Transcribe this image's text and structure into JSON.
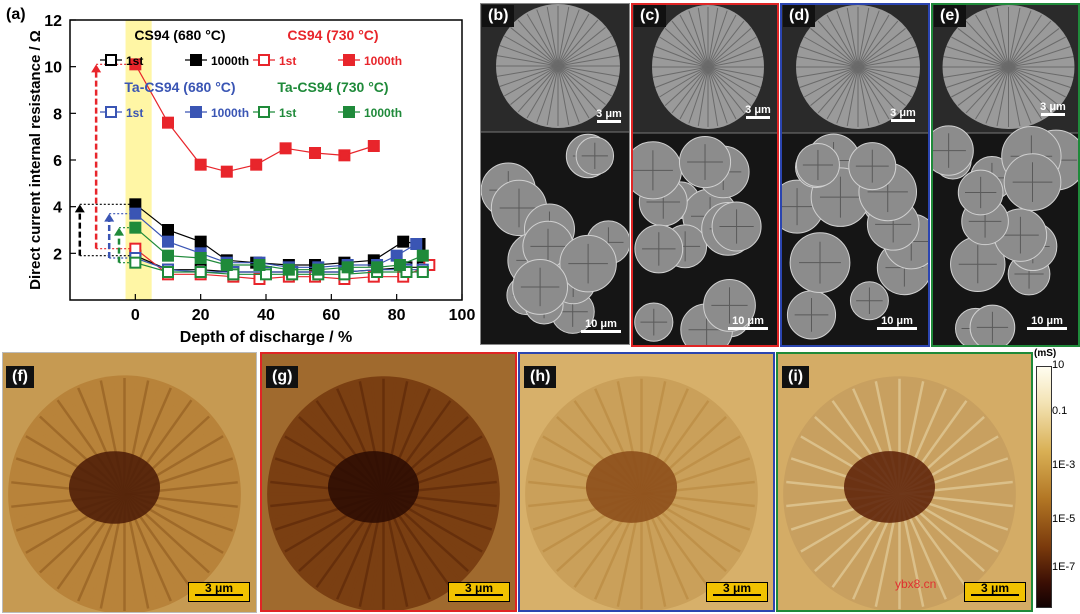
{
  "panels": {
    "a": "(a)",
    "b": "(b)",
    "c": "(c)",
    "d": "(d)",
    "e": "(e)",
    "f": "(f)",
    "g": "(g)",
    "h": "(h)",
    "i": "(i)"
  },
  "scalebars": {
    "small": "3 μm",
    "large": "10 μm",
    "map": "3 μm"
  },
  "colorbar": {
    "unit": "(mS)",
    "ticks": [
      "10",
      "0.1",
      "1E-3",
      "1E-5",
      "1E-7"
    ]
  },
  "watermark": "ybx8.cn",
  "chart_data": {
    "type": "line",
    "xlabel": "Depth of discharge / %",
    "ylabel": "Direct current internal resistance / Ω",
    "xlim": [
      -20,
      100
    ],
    "ylim": [
      0,
      12
    ],
    "xticks": [
      "0",
      "20",
      "40",
      "60",
      "80",
      "100"
    ],
    "yticks": [
      "2",
      "4",
      "6",
      "8",
      "10",
      "12"
    ],
    "x": [
      0,
      9,
      18,
      27,
      36,
      45,
      54,
      63,
      72,
      81,
      86,
      90
    ],
    "legend_groups": [
      {
        "title": "CS94 (680 °C)",
        "color": "#000000",
        "first": "1st",
        "last": "1000th"
      },
      {
        "title": "CS94 (730 °C)",
        "color": "#e8252b",
        "first": "1st",
        "last": "1000th"
      },
      {
        "title": "Ta-CS94 (680 °C)",
        "color": "#3a55b4",
        "first": "1st",
        "last": "1000th"
      },
      {
        "title": "Ta-CS94 (730 °C)",
        "color": "#1f8a3a",
        "first": "1st",
        "last": "1000th"
      }
    ],
    "series": [
      {
        "name": "CS94 (680 °C) 1st",
        "color": "#000000",
        "filled": false,
        "points": [
          [
            0,
            1.9
          ],
          [
            10,
            1.3
          ],
          [
            20,
            1.3
          ],
          [
            30,
            1.2
          ],
          [
            40,
            1.2
          ],
          [
            48,
            1.2
          ],
          [
            56,
            1.2
          ],
          [
            64,
            1.2
          ],
          [
            74,
            1.3
          ],
          [
            83,
            1.4
          ],
          [
            88,
            1.4
          ]
        ]
      },
      {
        "name": "CS94 (680 °C) 1000th",
        "color": "#000000",
        "filled": true,
        "points": [
          [
            0,
            4.1
          ],
          [
            10,
            3.0
          ],
          [
            20,
            2.5
          ],
          [
            28,
            1.7
          ],
          [
            37,
            1.6
          ],
          [
            47,
            1.5
          ],
          [
            55,
            1.5
          ],
          [
            64,
            1.6
          ],
          [
            73,
            1.7
          ],
          [
            82,
            2.5
          ],
          [
            87,
            2.4
          ]
        ]
      },
      {
        "name": "CS94 (730 °C) 1st",
        "color": "#e8252b",
        "filled": false,
        "points": [
          [
            0,
            2.2
          ],
          [
            10,
            1.1
          ],
          [
            20,
            1.1
          ],
          [
            30,
            1.0
          ],
          [
            38,
            0.9
          ],
          [
            47,
            1.0
          ],
          [
            55,
            1.0
          ],
          [
            64,
            0.9
          ],
          [
            73,
            1.0
          ],
          [
            82,
            1.0
          ],
          [
            90,
            1.5
          ]
        ]
      },
      {
        "name": "CS94 (730 °C) 1000th",
        "color": "#e8252b",
        "filled": true,
        "points": [
          [
            0,
            10.1
          ],
          [
            10,
            7.6
          ],
          [
            20,
            5.8
          ],
          [
            28,
            5.5
          ],
          [
            37,
            5.8
          ],
          [
            46,
            6.5
          ],
          [
            55,
            6.3
          ],
          [
            64,
            6.2
          ],
          [
            73,
            6.6
          ]
        ]
      },
      {
        "name": "Ta-CS94 (680 °C) 1st",
        "color": "#3a55b4",
        "filled": false,
        "points": [
          [
            0,
            1.8
          ],
          [
            10,
            1.3
          ],
          [
            20,
            1.2
          ],
          [
            30,
            1.2
          ],
          [
            40,
            1.2
          ],
          [
            48,
            1.2
          ],
          [
            56,
            1.2
          ],
          [
            64,
            1.2
          ],
          [
            74,
            1.3
          ],
          [
            83,
            1.3
          ],
          [
            88,
            1.3
          ]
        ]
      },
      {
        "name": "Ta-CS94 (680 °C) 1000th",
        "color": "#3a55b4",
        "filled": true,
        "points": [
          [
            0,
            3.7
          ],
          [
            10,
            2.5
          ],
          [
            20,
            2.0
          ],
          [
            28,
            1.6
          ],
          [
            38,
            1.6
          ],
          [
            47,
            1.4
          ],
          [
            56,
            1.4
          ],
          [
            65,
            1.5
          ],
          [
            74,
            1.5
          ],
          [
            80,
            1.9
          ],
          [
            86,
            2.4
          ]
        ]
      },
      {
        "name": "Ta-CS94 (730 °C) 1st",
        "color": "#1f8a3a",
        "filled": false,
        "points": [
          [
            0,
            1.6
          ],
          [
            10,
            1.2
          ],
          [
            20,
            1.2
          ],
          [
            30,
            1.1
          ],
          [
            40,
            1.1
          ],
          [
            48,
            1.1
          ],
          [
            56,
            1.1
          ],
          [
            64,
            1.1
          ],
          [
            74,
            1.2
          ],
          [
            83,
            1.2
          ],
          [
            88,
            1.2
          ]
        ]
      },
      {
        "name": "Ta-CS94 (730 °C) 1000th",
        "color": "#1f8a3a",
        "filled": true,
        "points": [
          [
            0,
            3.1
          ],
          [
            10,
            1.9
          ],
          [
            20,
            1.8
          ],
          [
            28,
            1.5
          ],
          [
            38,
            1.5
          ],
          [
            47,
            1.3
          ],
          [
            56,
            1.3
          ],
          [
            65,
            1.4
          ],
          [
            74,
            1.4
          ],
          [
            81,
            1.5
          ],
          [
            88,
            1.9
          ]
        ]
      }
    ]
  }
}
